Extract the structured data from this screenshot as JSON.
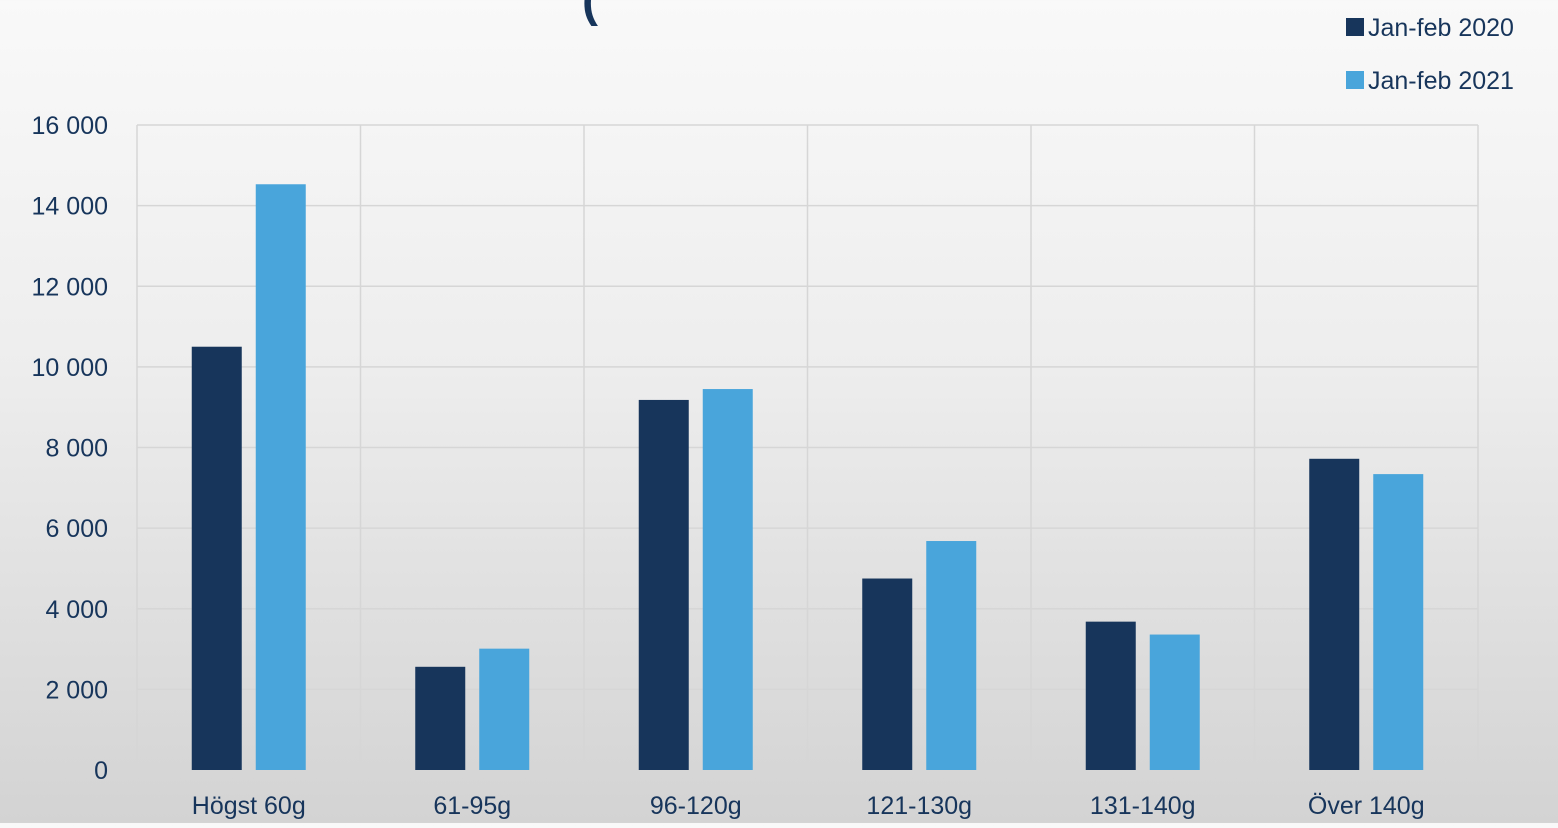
{
  "chart_data": {
    "type": "bar",
    "title": "(",
    "categories": [
      "Högst 60g",
      "61-95g",
      "96-120g",
      "121-130g",
      "131-140g",
      "Över 140g"
    ],
    "series": [
      {
        "name": "Jan-feb 2020",
        "values": [
          10500,
          2560,
          9180,
          4750,
          3680,
          7720
        ],
        "color": "#17355b"
      },
      {
        "name": "Jan-feb 2021",
        "values": [
          14530,
          3010,
          9450,
          5680,
          3360,
          7340
        ],
        "color": "#49a5db"
      }
    ],
    "ylim": [
      0,
      16000
    ],
    "yticks": [
      0,
      2000,
      4000,
      6000,
      8000,
      10000,
      12000,
      14000,
      16000
    ],
    "ytick_labels": [
      "0",
      "2 000",
      "4 000",
      "6 000",
      "8 000",
      "10 000",
      "12 000",
      "14 000",
      "16 000"
    ],
    "grid": true,
    "legend_position": "top-right",
    "xlabel": "",
    "ylabel": ""
  }
}
